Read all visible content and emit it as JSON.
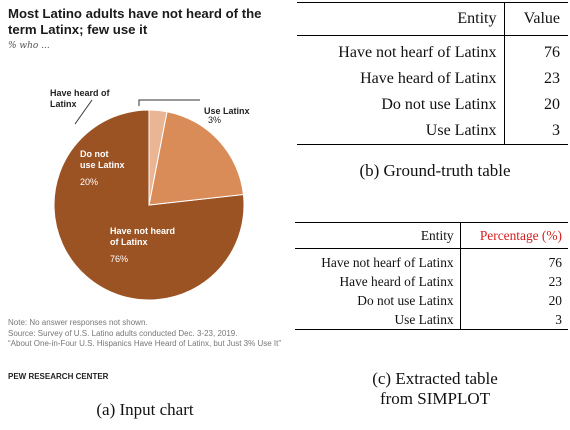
{
  "panel_a": {
    "title": "Most Latino adults have not heard of the term Latinx; few use it",
    "subtitle": "% who ...",
    "notes": [
      "Note: No answer responses not shown.",
      "Source: Survey of U.S. Latino adults conducted Dec. 3-23, 2019.",
      "“About One-in-Four U.S. Hispanics Have Heard of Latinx, but Just 3% Use It”"
    ],
    "brand": "PEW RESEARCH CENTER",
    "caption": "(a) Input chart"
  },
  "chart_data": {
    "type": "pie",
    "title": "Most Latino adults have not heard of the term Latinx; few use it",
    "subtitle": "% who ...",
    "slices": [
      {
        "label_lines": [
          "Have not heard",
          "of Latinx"
        ],
        "value": 76,
        "value_label": "76%",
        "color": "#9c5324"
      },
      {
        "label_lines": [
          "Do not",
          "use Latinx"
        ],
        "value": 20,
        "value_label": "20%",
        "color": "#d98b58"
      },
      {
        "label_lines": [
          "Use Latinx"
        ],
        "value": 3,
        "value_label": "3%",
        "color": "#e9b594"
      }
    ],
    "bracket_label_lines": [
      "Have heard of",
      "Latinx"
    ]
  },
  "panel_b": {
    "caption": "(b) Ground-truth table",
    "headers": [
      "Entity",
      "Value"
    ],
    "rows": [
      [
        "Have not hearf of Latinx",
        "76"
      ],
      [
        "Have heard of Latinx",
        "23"
      ],
      [
        "Do not use Latinx",
        "20"
      ],
      [
        "Use Latinx",
        "3"
      ]
    ]
  },
  "panel_c": {
    "caption_lines": [
      "(c) Extracted table",
      "from SIMPLOT"
    ],
    "headers": [
      "Entity",
      "Percentage (%)"
    ],
    "header_accent": "#d62020",
    "rows": [
      [
        "Have not hearf of Latinx",
        "76"
      ],
      [
        "Have heard of Latinx",
        "23"
      ],
      [
        "Do not use Latinx",
        "20"
      ],
      [
        "Use Latinx",
        "3"
      ]
    ]
  }
}
